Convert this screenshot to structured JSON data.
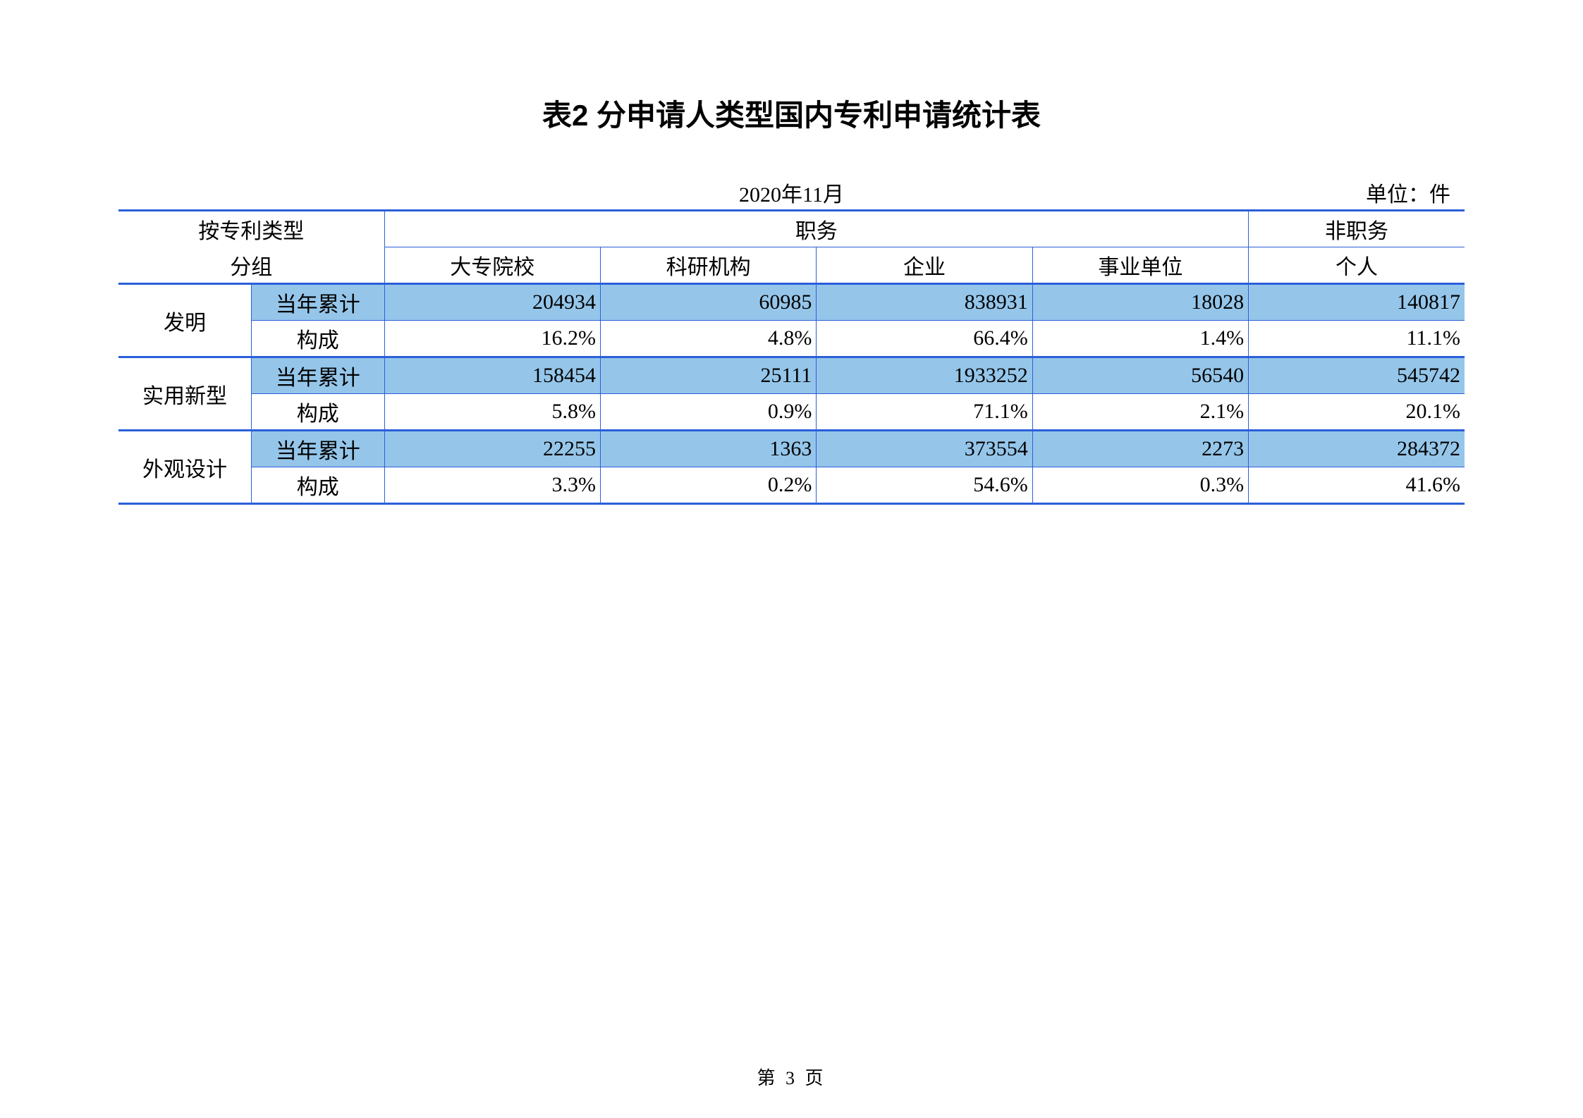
{
  "title": "表2  分申请人类型国内专利申请统计表",
  "date": "2020年11月",
  "unit": "单位：件",
  "footer": "第 3 页",
  "colors": {
    "border": "#2b5fd9",
    "row_fill": "#95c6ea",
    "background": "#ffffff",
    "text": "#000000"
  },
  "header": {
    "group_label_top": "按专利类型",
    "group_label_bottom": "分组",
    "occupational": "职务",
    "non_occupational": "非职务",
    "columns": [
      "大专院校",
      "科研机构",
      "企业",
      "事业单位",
      "个人"
    ]
  },
  "metrics": {
    "cumulative": "当年累计",
    "composition": "构成"
  },
  "groups": [
    {
      "name": "发明",
      "cumulative": [
        "204934",
        "60985",
        "838931",
        "18028",
        "140817"
      ],
      "composition": [
        "16.2%",
        "4.8%",
        "66.4%",
        "1.4%",
        "11.1%"
      ]
    },
    {
      "name": "实用新型",
      "cumulative": [
        "158454",
        "25111",
        "1933252",
        "56540",
        "545742"
      ],
      "composition": [
        "5.8%",
        "0.9%",
        "71.1%",
        "2.1%",
        "20.1%"
      ]
    },
    {
      "name": "外观设计",
      "cumulative": [
        "22255",
        "1363",
        "373554",
        "2273",
        "284372"
      ],
      "composition": [
        "3.3%",
        "0.2%",
        "54.6%",
        "0.3%",
        "41.6%"
      ]
    }
  ]
}
